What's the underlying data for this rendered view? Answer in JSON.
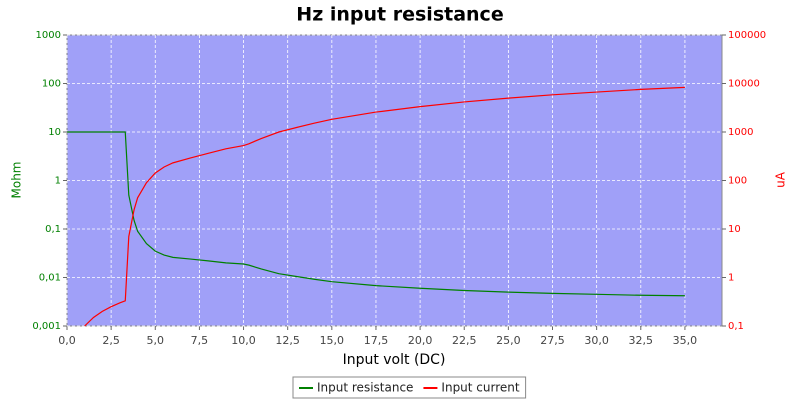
{
  "chart_data": {
    "type": "line",
    "title": "Hz input resistance",
    "x_label": "Input volt (DC)",
    "y_label": "Mohm",
    "y2_label": "uA",
    "x": [
      0,
      0.5,
      1,
      1.5,
      2,
      2.5,
      3,
      3.3,
      3.5,
      3.8,
      4,
      4.5,
      5,
      5.5,
      6,
      7,
      8,
      9,
      10,
      10.3,
      11,
      12,
      13,
      14,
      15,
      17.5,
      20,
      22.5,
      25,
      27.5,
      30,
      32.5,
      35
    ],
    "series": [
      {
        "name": "Input resistance",
        "color": "#008000",
        "axis": "y",
        "values": [
          10,
          10,
          10,
          10,
          10,
          10,
          10,
          10,
          0.5,
          0.15,
          0.09,
          0.05,
          0.035,
          0.029,
          0.026,
          0.024,
          0.022,
          0.02,
          0.019,
          0.018,
          0.015,
          0.012,
          0.0105,
          0.0092,
          0.0082,
          0.0068,
          0.006,
          0.0054,
          0.005,
          0.0047,
          0.0045,
          0.0043,
          0.0042
        ]
      },
      {
        "name": "Input current",
        "color": "#ff0000",
        "axis": "y2",
        "values": [
          null,
          null,
          0.1,
          0.15,
          0.2,
          0.25,
          0.3,
          0.33,
          7,
          25,
          44,
          90,
          143,
          190,
          231,
          292,
          364,
          450,
          526,
          572,
          733,
          1000,
          1238,
          1522,
          1829,
          2574,
          3333,
          4167,
          5000,
          5851,
          6667,
          7558,
          8333
        ]
      }
    ],
    "xlim": [
      0,
      37.1
    ],
    "xticks": [
      {
        "value": 0,
        "label": "0,0"
      },
      {
        "value": 2.5,
        "label": "2,5"
      },
      {
        "value": 5,
        "label": "5,0"
      },
      {
        "value": 7.5,
        "label": "7,5"
      },
      {
        "value": 10,
        "label": "10,0"
      },
      {
        "value": 12.5,
        "label": "12,5"
      },
      {
        "value": 15,
        "label": "15,0"
      },
      {
        "value": 17.5,
        "label": "17,5"
      },
      {
        "value": 20,
        "label": "20,0"
      },
      {
        "value": 22.5,
        "label": "22,5"
      },
      {
        "value": 25,
        "label": "25,0"
      },
      {
        "value": 27.5,
        "label": "27,5"
      },
      {
        "value": 30,
        "label": "30,0"
      },
      {
        "value": 32.5,
        "label": "32,5"
      },
      {
        "value": 35,
        "label": "35,0"
      }
    ],
    "ylim": [
      0.001,
      1000
    ],
    "ylog": true,
    "yticks": [
      {
        "value": 0.001,
        "label": "0,001"
      },
      {
        "value": 0.01,
        "label": "0,01"
      },
      {
        "value": 0.1,
        "label": "0,1"
      },
      1,
      10,
      100,
      1000
    ],
    "y2lim": [
      0.1,
      100000
    ],
    "y2log": true,
    "y2ticks": [
      {
        "value": 0.1,
        "label": "0,1"
      },
      1,
      10,
      100,
      1000,
      10000,
      100000
    ],
    "grid": true,
    "legend": "bottom"
  }
}
